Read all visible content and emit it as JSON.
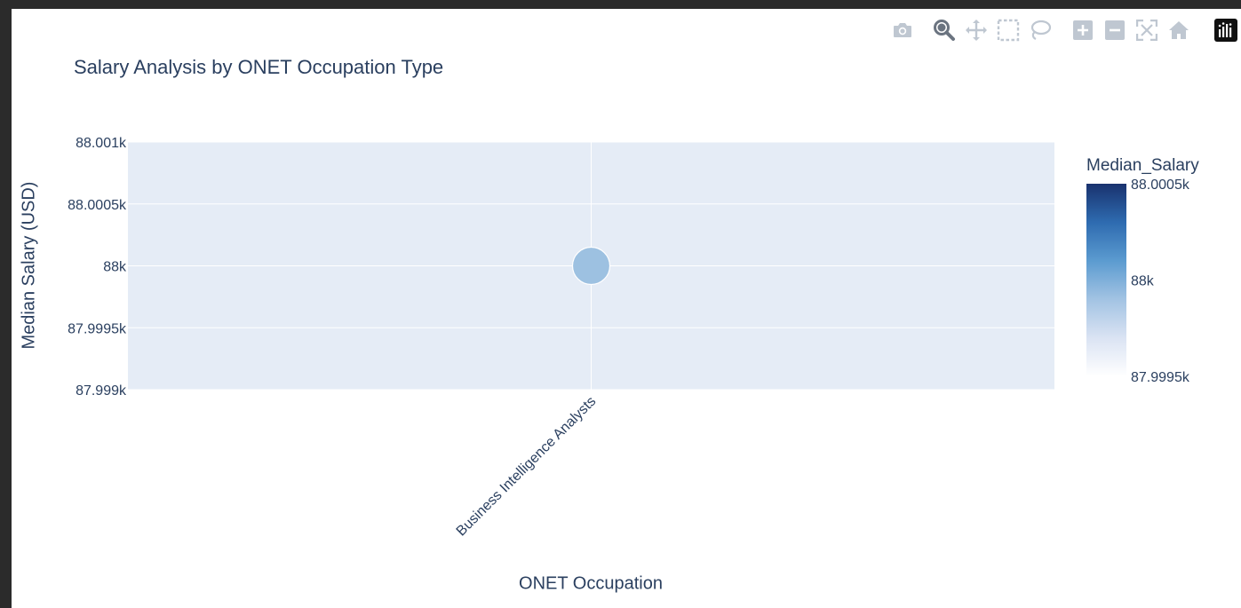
{
  "chart_data": {
    "type": "scatter",
    "title": "Salary Analysis by ONET Occupation Type",
    "xlabel": "ONET Occupation",
    "ylabel": "Median Salary (USD)",
    "categories": [
      "Business Intelligence Analysts"
    ],
    "values": [
      88000
    ],
    "ylim": [
      87999,
      88001
    ],
    "yticks": [
      {
        "value": 88001,
        "label": "88.001k"
      },
      {
        "value": 88000.5,
        "label": "88.0005k"
      },
      {
        "value": 88000,
        "label": "88k"
      },
      {
        "value": 87999.5,
        "label": "87.9995k"
      },
      {
        "value": 87999,
        "label": "87.999k"
      }
    ],
    "x_tick_rotation": -45,
    "grid": true,
    "colorbar": {
      "title": "Median_Salary",
      "range": [
        87999.5,
        88000.5
      ],
      "ticks": [
        {
          "value": 88000.5,
          "label": "88.0005k"
        },
        {
          "value": 88000,
          "label": "88k"
        },
        {
          "value": 87999.5,
          "label": "87.9995k"
        }
      ],
      "colors": [
        "#ffffff",
        "#dae3f3",
        "#a2c3e3",
        "#5b9bd0",
        "#2e6bb0",
        "#19326e"
      ]
    },
    "marker_color": "#9dc1e1"
  },
  "colors": {
    "plot_bg": "#e5ecf6",
    "grid": "#ffffff",
    "text": "#2a3f5f",
    "modebar_icon": "#bfc7d1",
    "modebar_active": "#6b7480"
  },
  "modebar": [
    {
      "name": "camera-icon"
    },
    {
      "name": "zoom-icon"
    },
    {
      "name": "pan-icon"
    },
    {
      "name": "box-select-icon"
    },
    {
      "name": "lasso-select-icon"
    },
    {
      "name": "zoom-in-icon"
    },
    {
      "name": "zoom-out-icon"
    },
    {
      "name": "autoscale-icon"
    },
    {
      "name": "reset-axes-icon"
    },
    {
      "name": "plotly-logo-icon"
    }
  ]
}
